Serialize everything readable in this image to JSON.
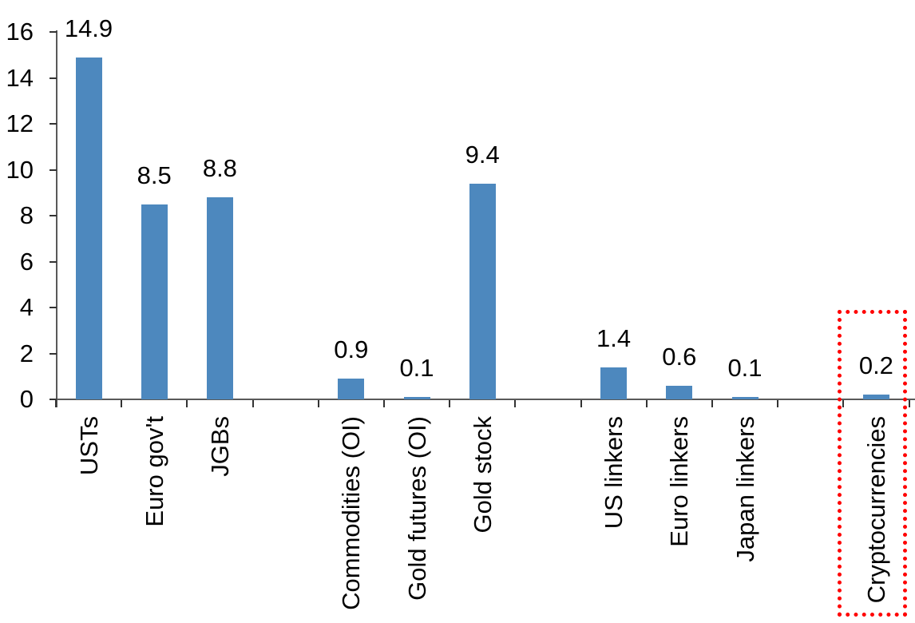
{
  "chart_data": {
    "type": "bar",
    "title": "",
    "xlabel": "",
    "ylabel": "",
    "categories": [
      "USTs",
      "Euro gov't",
      "JGBs",
      "Commodities (OI)",
      "Gold futures (OI)",
      "Gold stock",
      "US linkers",
      "Euro linkers",
      "Japan linkers",
      "Cryptocurrencies"
    ],
    "values": [
      14.9,
      8.5,
      8.8,
      0.9,
      0.1,
      9.4,
      1.4,
      0.6,
      0.1,
      0.2
    ],
    "data_labels": [
      "14.9",
      "8.5",
      "8.8",
      "0.9",
      "0.1",
      "9.4",
      "1.4",
      "0.6",
      "0.1",
      "0.2"
    ],
    "slots": [
      0,
      1,
      2,
      4,
      5,
      6,
      8,
      9,
      10,
      12
    ],
    "num_slots": 13,
    "ylim": [
      0,
      16
    ],
    "ytick_step": 2,
    "ytick_labels": [
      "0",
      "2",
      "4",
      "6",
      "8",
      "10",
      "12",
      "14",
      "16"
    ],
    "grid": false,
    "legend": false,
    "bar_color": "#4D88BE",
    "axis_color": "#595959",
    "tick_color": "#333333",
    "text_color": "#000000",
    "highlight": {
      "category": "Cryptocurrencies",
      "style": "dotted-box",
      "color": "#FF0000"
    }
  }
}
